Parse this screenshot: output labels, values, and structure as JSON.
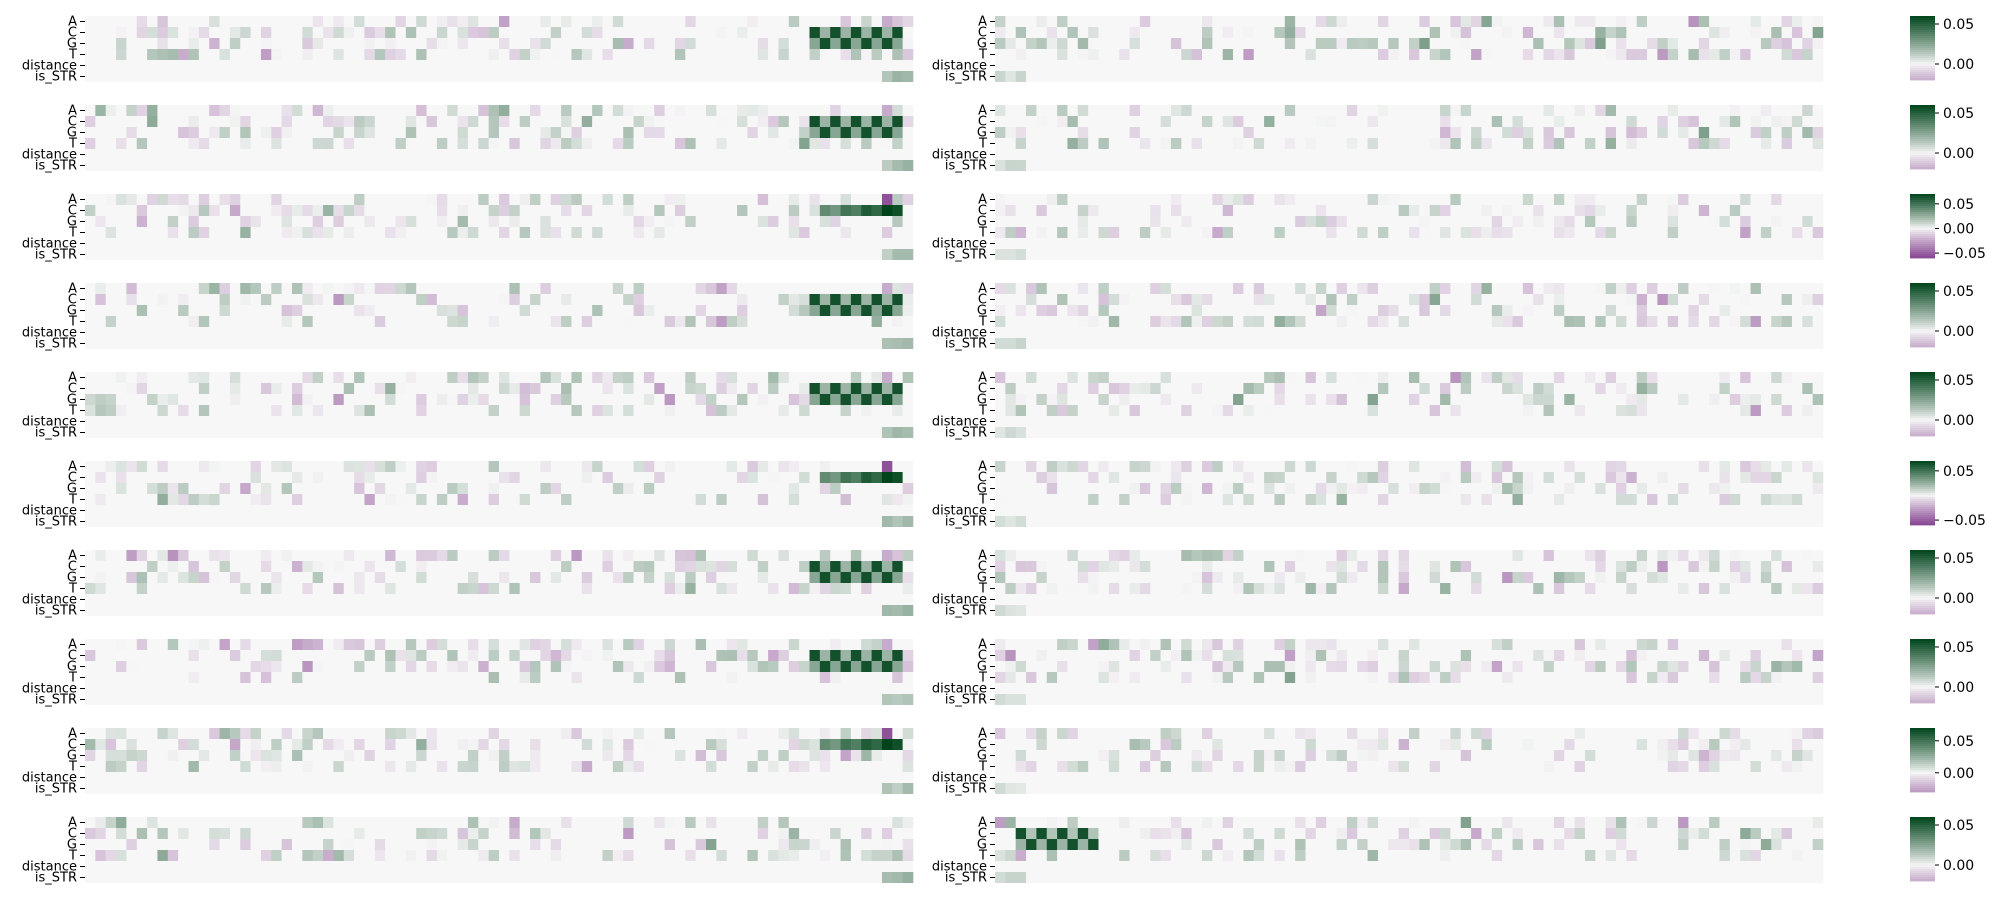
{
  "figure": {
    "rows": 10,
    "columns_per_row": 2,
    "track_labels": [
      "A",
      "C",
      "G",
      "T",
      "distance",
      "is_STR"
    ],
    "colormap": {
      "negative": "#762a83",
      "neutral": "#f7f7f7",
      "positive": "#00441b"
    }
  },
  "chart_data": [
    {
      "type": "heatmap",
      "row": 1,
      "colorbar_ticks": [
        "0.05",
        "0.00"
      ],
      "colorbar_range": [
        -0.02,
        0.06
      ],
      "left_motif": "mid",
      "right_motif": "none"
    },
    {
      "type": "heatmap",
      "row": 2,
      "colorbar_ticks": [
        "0.05",
        "0.00"
      ],
      "colorbar_range": [
        -0.02,
        0.06
      ],
      "left_motif": "mid",
      "right_motif": "none"
    },
    {
      "type": "heatmap",
      "row": 3,
      "colorbar_ticks": [
        "0.05",
        "0.00",
        "−0.05"
      ],
      "colorbar_range": [
        -0.06,
        0.07
      ],
      "left_motif": "c_only",
      "right_motif": "none"
    },
    {
      "type": "heatmap",
      "row": 4,
      "colorbar_ticks": [
        "0.05",
        "0.00"
      ],
      "colorbar_range": [
        -0.02,
        0.06
      ],
      "left_motif": "mid",
      "right_motif": "none"
    },
    {
      "type": "heatmap",
      "row": 5,
      "colorbar_ticks": [
        "0.05",
        "0.00"
      ],
      "colorbar_range": [
        -0.02,
        0.06
      ],
      "left_motif": "mid",
      "right_motif": "none"
    },
    {
      "type": "heatmap",
      "row": 6,
      "colorbar_ticks": [
        "0.05",
        "−0.05"
      ],
      "colorbar_range": [
        -0.06,
        0.07
      ],
      "left_motif": "c_only",
      "right_motif": "none"
    },
    {
      "type": "heatmap",
      "row": 7,
      "colorbar_ticks": [
        "0.05",
        "0.00"
      ],
      "colorbar_range": [
        -0.02,
        0.06
      ],
      "left_motif": "mid",
      "right_motif": "none"
    },
    {
      "type": "heatmap",
      "row": 8,
      "colorbar_ticks": [
        "0.05",
        "0.00"
      ],
      "colorbar_range": [
        -0.02,
        0.06
      ],
      "left_motif": "mid",
      "right_motif": "none"
    },
    {
      "type": "heatmap",
      "row": 9,
      "colorbar_ticks": [
        "0.05",
        "0.00"
      ],
      "colorbar_range": [
        -0.03,
        0.07
      ],
      "left_motif": "c_only",
      "right_motif": "none"
    },
    {
      "type": "heatmap",
      "row": 10,
      "colorbar_ticks": [
        "0.05",
        "0.00"
      ],
      "colorbar_range": [
        -0.02,
        0.06
      ],
      "left_motif": "none",
      "right_motif": "start"
    }
  ]
}
